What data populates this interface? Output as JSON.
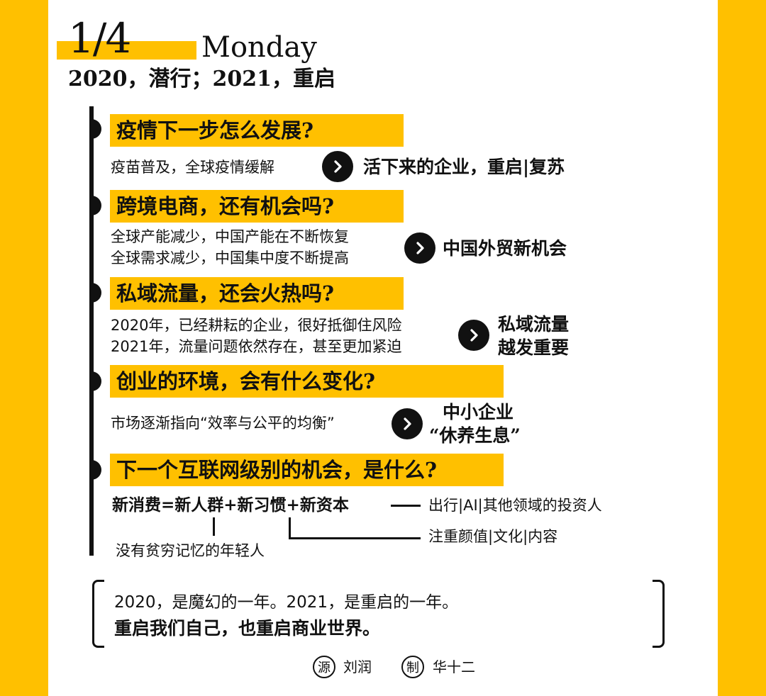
{
  "header": {
    "date": "1/4",
    "weekday": "Monday",
    "subtitle": "2020，潜行；2021，重启"
  },
  "sections": [
    {
      "question": "疫情下一步怎么发展?",
      "lines": [
        "疫苗普及，全球疫情缓解"
      ],
      "result_lines": [
        "活下来的企业，重启|复苏"
      ]
    },
    {
      "question": "跨境电商，还有机会吗?",
      "lines": [
        "全球产能减少，中国产能在不断恢复",
        "全球需求减少，中国集中度不断提高"
      ],
      "result_lines": [
        "中国外贸新机会"
      ]
    },
    {
      "question": "私域流量，还会火热吗?",
      "lines": [
        "2020年，已经耕耘的企业，很好抵御住风险",
        "2021年，流量问题依然存在，甚至更加紧迫"
      ],
      "result_lines": [
        "私域流量",
        "越发重要"
      ]
    },
    {
      "question": "创业的环境，会有什么变化?",
      "lines": [
        "市场逐渐指向“效率与公平的均衡”"
      ],
      "result_lines": [
        "中小企业",
        "“休养生息”"
      ]
    },
    {
      "question": "下一个互联网级别的机会，是什么?",
      "formula": "新消费=新人群+新习惯+新资本",
      "annotations": {
        "capital": "出行|AI|其他领域的投资人",
        "habits": "注重颜值|文化|内容",
        "people": "没有贫穷记忆的年轻人"
      }
    }
  ],
  "quote": {
    "line1": "2020，是魔幻的一年。2021，是重启的一年。",
    "line2": "重启我们自己，也重启商业世界。"
  },
  "credits": {
    "source_badge": "源",
    "source_name": "刘润",
    "maker_badge": "制",
    "maker_name": "华十二"
  },
  "colors": {
    "accent": "#FFC000",
    "ink": "#111111",
    "paper": "#FFFFFF"
  }
}
